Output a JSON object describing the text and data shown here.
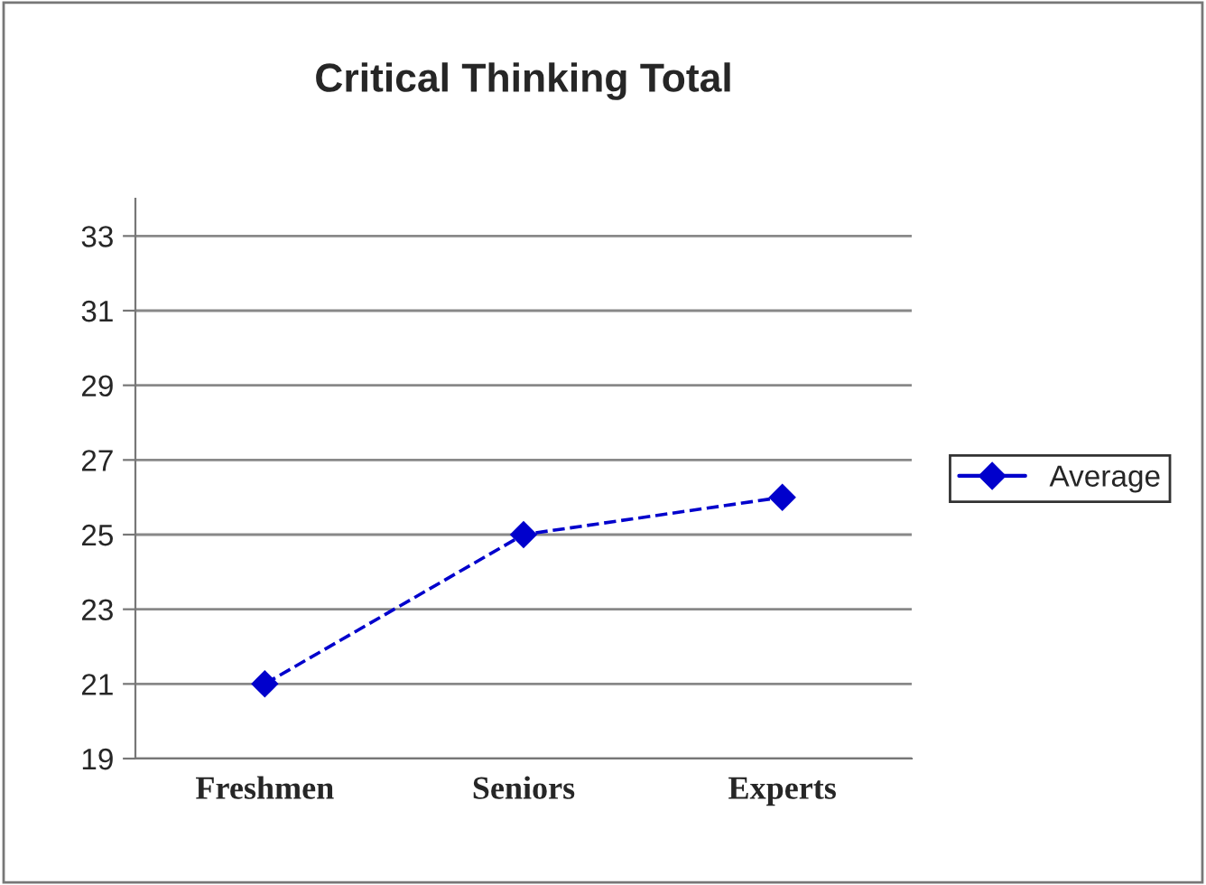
{
  "chart_data": {
    "type": "line",
    "title": "Critical Thinking Total",
    "categories": [
      "Freshmen",
      "Seniors",
      "Experts"
    ],
    "series": [
      {
        "name": "Average",
        "color": "#0000cc",
        "values": [
          21,
          25,
          26
        ]
      }
    ],
    "ylim": [
      19,
      34
    ],
    "yticks": [
      19,
      21,
      23,
      25,
      27,
      29,
      31,
      33
    ],
    "grid": "y",
    "legend": "right",
    "marker": "diamond",
    "line_style": "dashed"
  }
}
